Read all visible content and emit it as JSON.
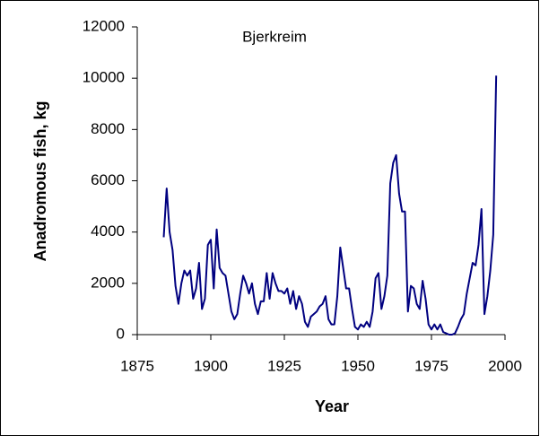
{
  "chart_data": {
    "type": "line",
    "title": "Bjerkreim",
    "x_label": "Year",
    "y_label": "Anadromous fish, kg",
    "x": [
      1884,
      1885,
      1886,
      1887,
      1888,
      1889,
      1890,
      1891,
      1892,
      1893,
      1894,
      1895,
      1896,
      1897,
      1898,
      1899,
      1900,
      1901,
      1902,
      1903,
      1904,
      1905,
      1906,
      1907,
      1908,
      1909,
      1910,
      1911,
      1912,
      1913,
      1914,
      1915,
      1916,
      1917,
      1918,
      1919,
      1920,
      1921,
      1922,
      1923,
      1924,
      1925,
      1926,
      1927,
      1928,
      1929,
      1930,
      1931,
      1932,
      1933,
      1934,
      1935,
      1936,
      1937,
      1938,
      1939,
      1940,
      1941,
      1942,
      1943,
      1944,
      1945,
      1946,
      1947,
      1948,
      1949,
      1950,
      1951,
      1952,
      1953,
      1954,
      1955,
      1956,
      1957,
      1958,
      1959,
      1960,
      1961,
      1962,
      1963,
      1964,
      1965,
      1966,
      1967,
      1968,
      1969,
      1970,
      1971,
      1972,
      1973,
      1974,
      1975,
      1976,
      1977,
      1978,
      1979,
      1980,
      1981,
      1982,
      1983,
      1984,
      1985,
      1986,
      1987,
      1988,
      1989,
      1990,
      1991,
      1992,
      1993,
      1994,
      1995,
      1996,
      1997
    ],
    "series": [
      {
        "color": "#000080",
        "values": [
          3800,
          5700,
          4000,
          3300,
          1900,
          1200,
          2000,
          2500,
          2300,
          2500,
          1400,
          1800,
          2800,
          1000,
          1400,
          3500,
          3700,
          1800,
          4100,
          2600,
          2400,
          2300,
          1600,
          900,
          600,
          800,
          1600,
          2300,
          2000,
          1600,
          2000,
          1200,
          800,
          1300,
          1300,
          2400,
          1400,
          2400,
          2000,
          1700,
          1700,
          1600,
          1800,
          1200,
          1700,
          1000,
          1500,
          1200,
          500,
          300,
          700,
          800,
          900,
          1100,
          1200,
          1500,
          600,
          400,
          400,
          1500,
          3400,
          2600,
          1800,
          1800,
          1000,
          300,
          200,
          400,
          300,
          500,
          300,
          900,
          2200,
          2400,
          1000,
          1500,
          2300,
          5900,
          6700,
          7000,
          5500,
          4800,
          4800,
          900,
          1900,
          1800,
          1200,
          1000,
          2100,
          1400,
          400,
          200,
          400,
          200,
          400,
          100,
          50,
          0,
          0,
          50,
          300,
          600,
          800,
          1600,
          2200,
          2800,
          2700,
          3500,
          4900,
          800,
          1500,
          2500,
          3900,
          10100
        ]
      }
    ],
    "xlim": [
      1875,
      2000
    ],
    "xticks": [
      1875,
      1900,
      1925,
      1950,
      1975,
      2000
    ],
    "ylim": [
      0,
      12000
    ],
    "yticks": [
      0,
      2000,
      4000,
      6000,
      8000,
      10000,
      12000
    ]
  }
}
